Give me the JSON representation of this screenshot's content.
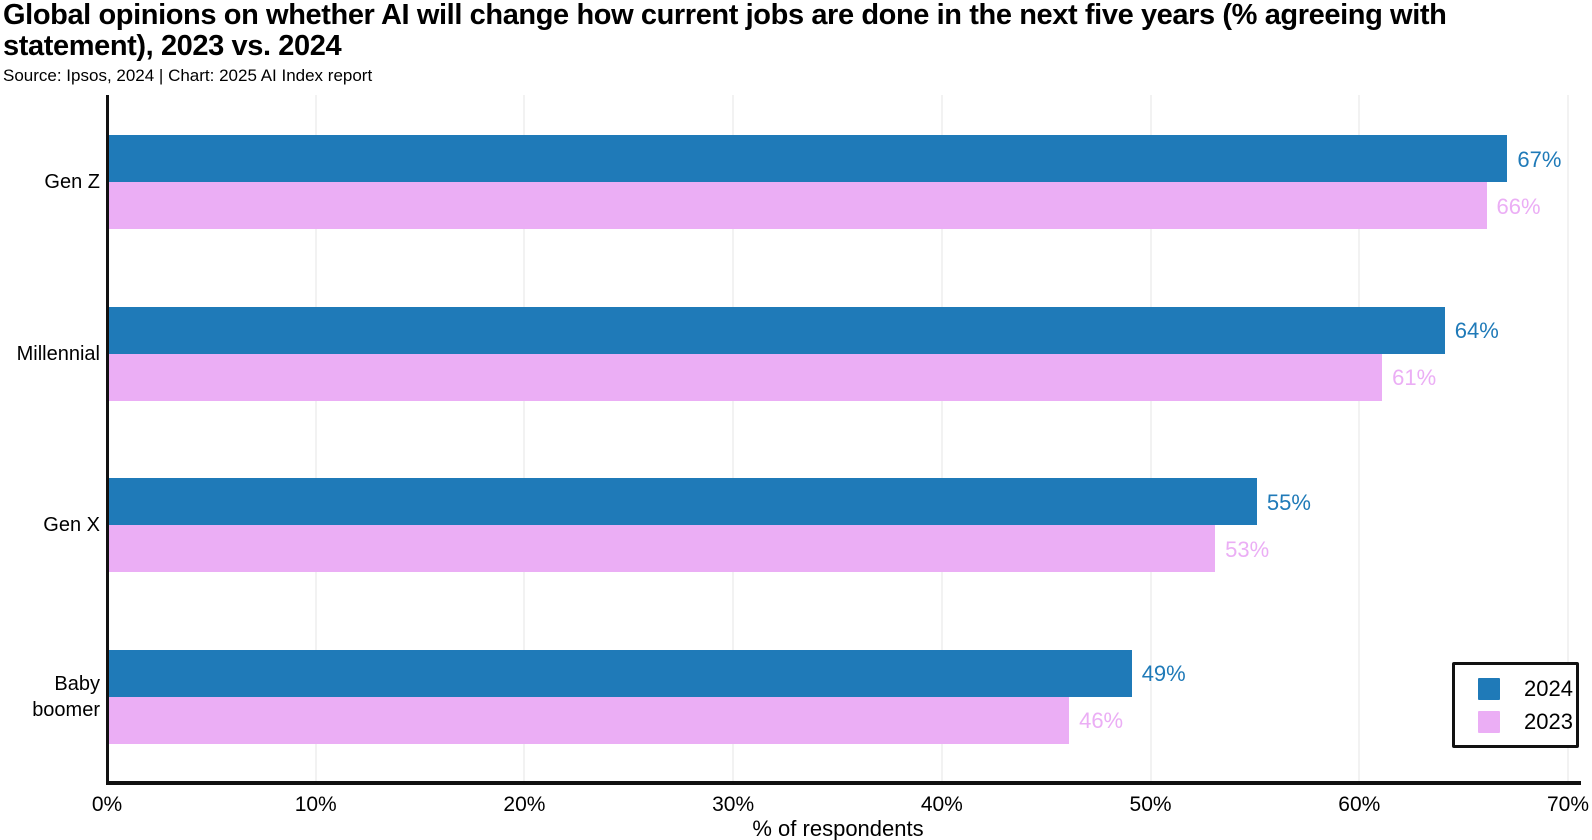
{
  "header": {
    "title": "Global opinions on whether AI will change how current jobs are done in the next five years (% agreeing with statement), 2023 vs. 2024",
    "source": "Source: Ipsos, 2024 | Chart: 2025 AI Index report"
  },
  "chart_data": {
    "type": "bar",
    "orientation": "horizontal",
    "title": "Global opinions on whether AI will change how current jobs are done in the next five years (% agreeing with statement), 2023 vs. 2024",
    "subtitle": "Source: Ipsos, 2024 | Chart: 2025 AI Index report",
    "categories": [
      "Gen Z",
      "Millennial",
      "Gen X",
      "Baby boomer"
    ],
    "series": [
      {
        "name": "2024",
        "color": "#1F7AB8",
        "values": [
          67,
          64,
          55,
          49
        ]
      },
      {
        "name": "2023",
        "color": "#EBAEF5",
        "values": [
          66,
          61,
          53,
          46
        ]
      }
    ],
    "value_suffix": "%",
    "xlabel": "% of respondents",
    "xlim": [
      0,
      70
    ],
    "xticks": [
      "0%",
      "10%",
      "20%",
      "30%",
      "40%",
      "50%",
      "60%",
      "70%"
    ],
    "grid": "vertical-light",
    "gridline_color": "#f2f2f2",
    "axis_color": "#111111",
    "legend_position": "bottom-right",
    "legend": [
      "2024",
      "2023"
    ]
  }
}
